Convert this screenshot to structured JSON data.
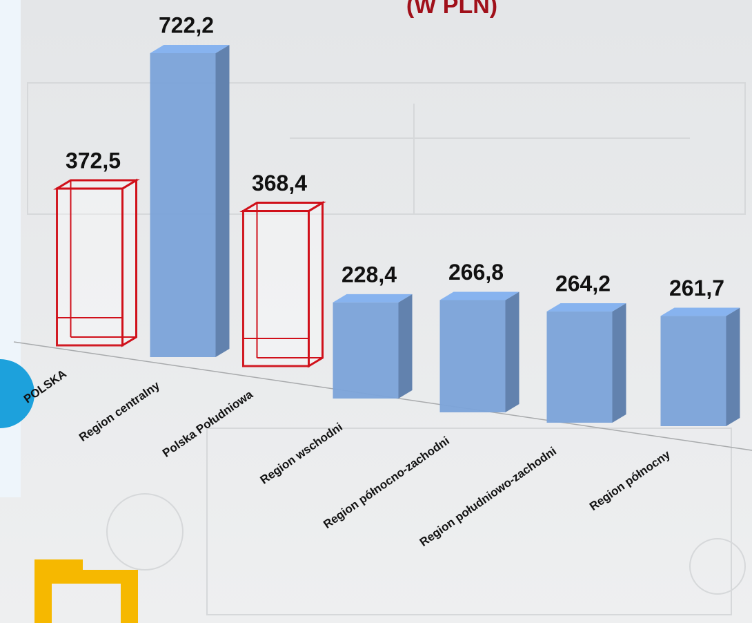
{
  "chart_data": {
    "type": "bar3d",
    "title": "(W PLN)",
    "categories": [
      "POLSKA",
      "Region centralny",
      "Polska Południowa",
      "Region wschodni",
      "Region północno-zachodni",
      "Region południowo-zachodni",
      "Region północny"
    ],
    "values": [
      372.5,
      722.2,
      368.4,
      228.4,
      266.8,
      264.2,
      261.7
    ],
    "value_labels": [
      "372,5",
      "722,2",
      "368,4",
      "228,4",
      "266,8",
      "264,2",
      "261,7"
    ],
    "colors": [
      "#d0101a",
      "#7ba3d9",
      "#d0101a",
      "#7ba3d9",
      "#7ba3d9",
      "#7ba3d9",
      "#7ba3d9"
    ]
  }
}
